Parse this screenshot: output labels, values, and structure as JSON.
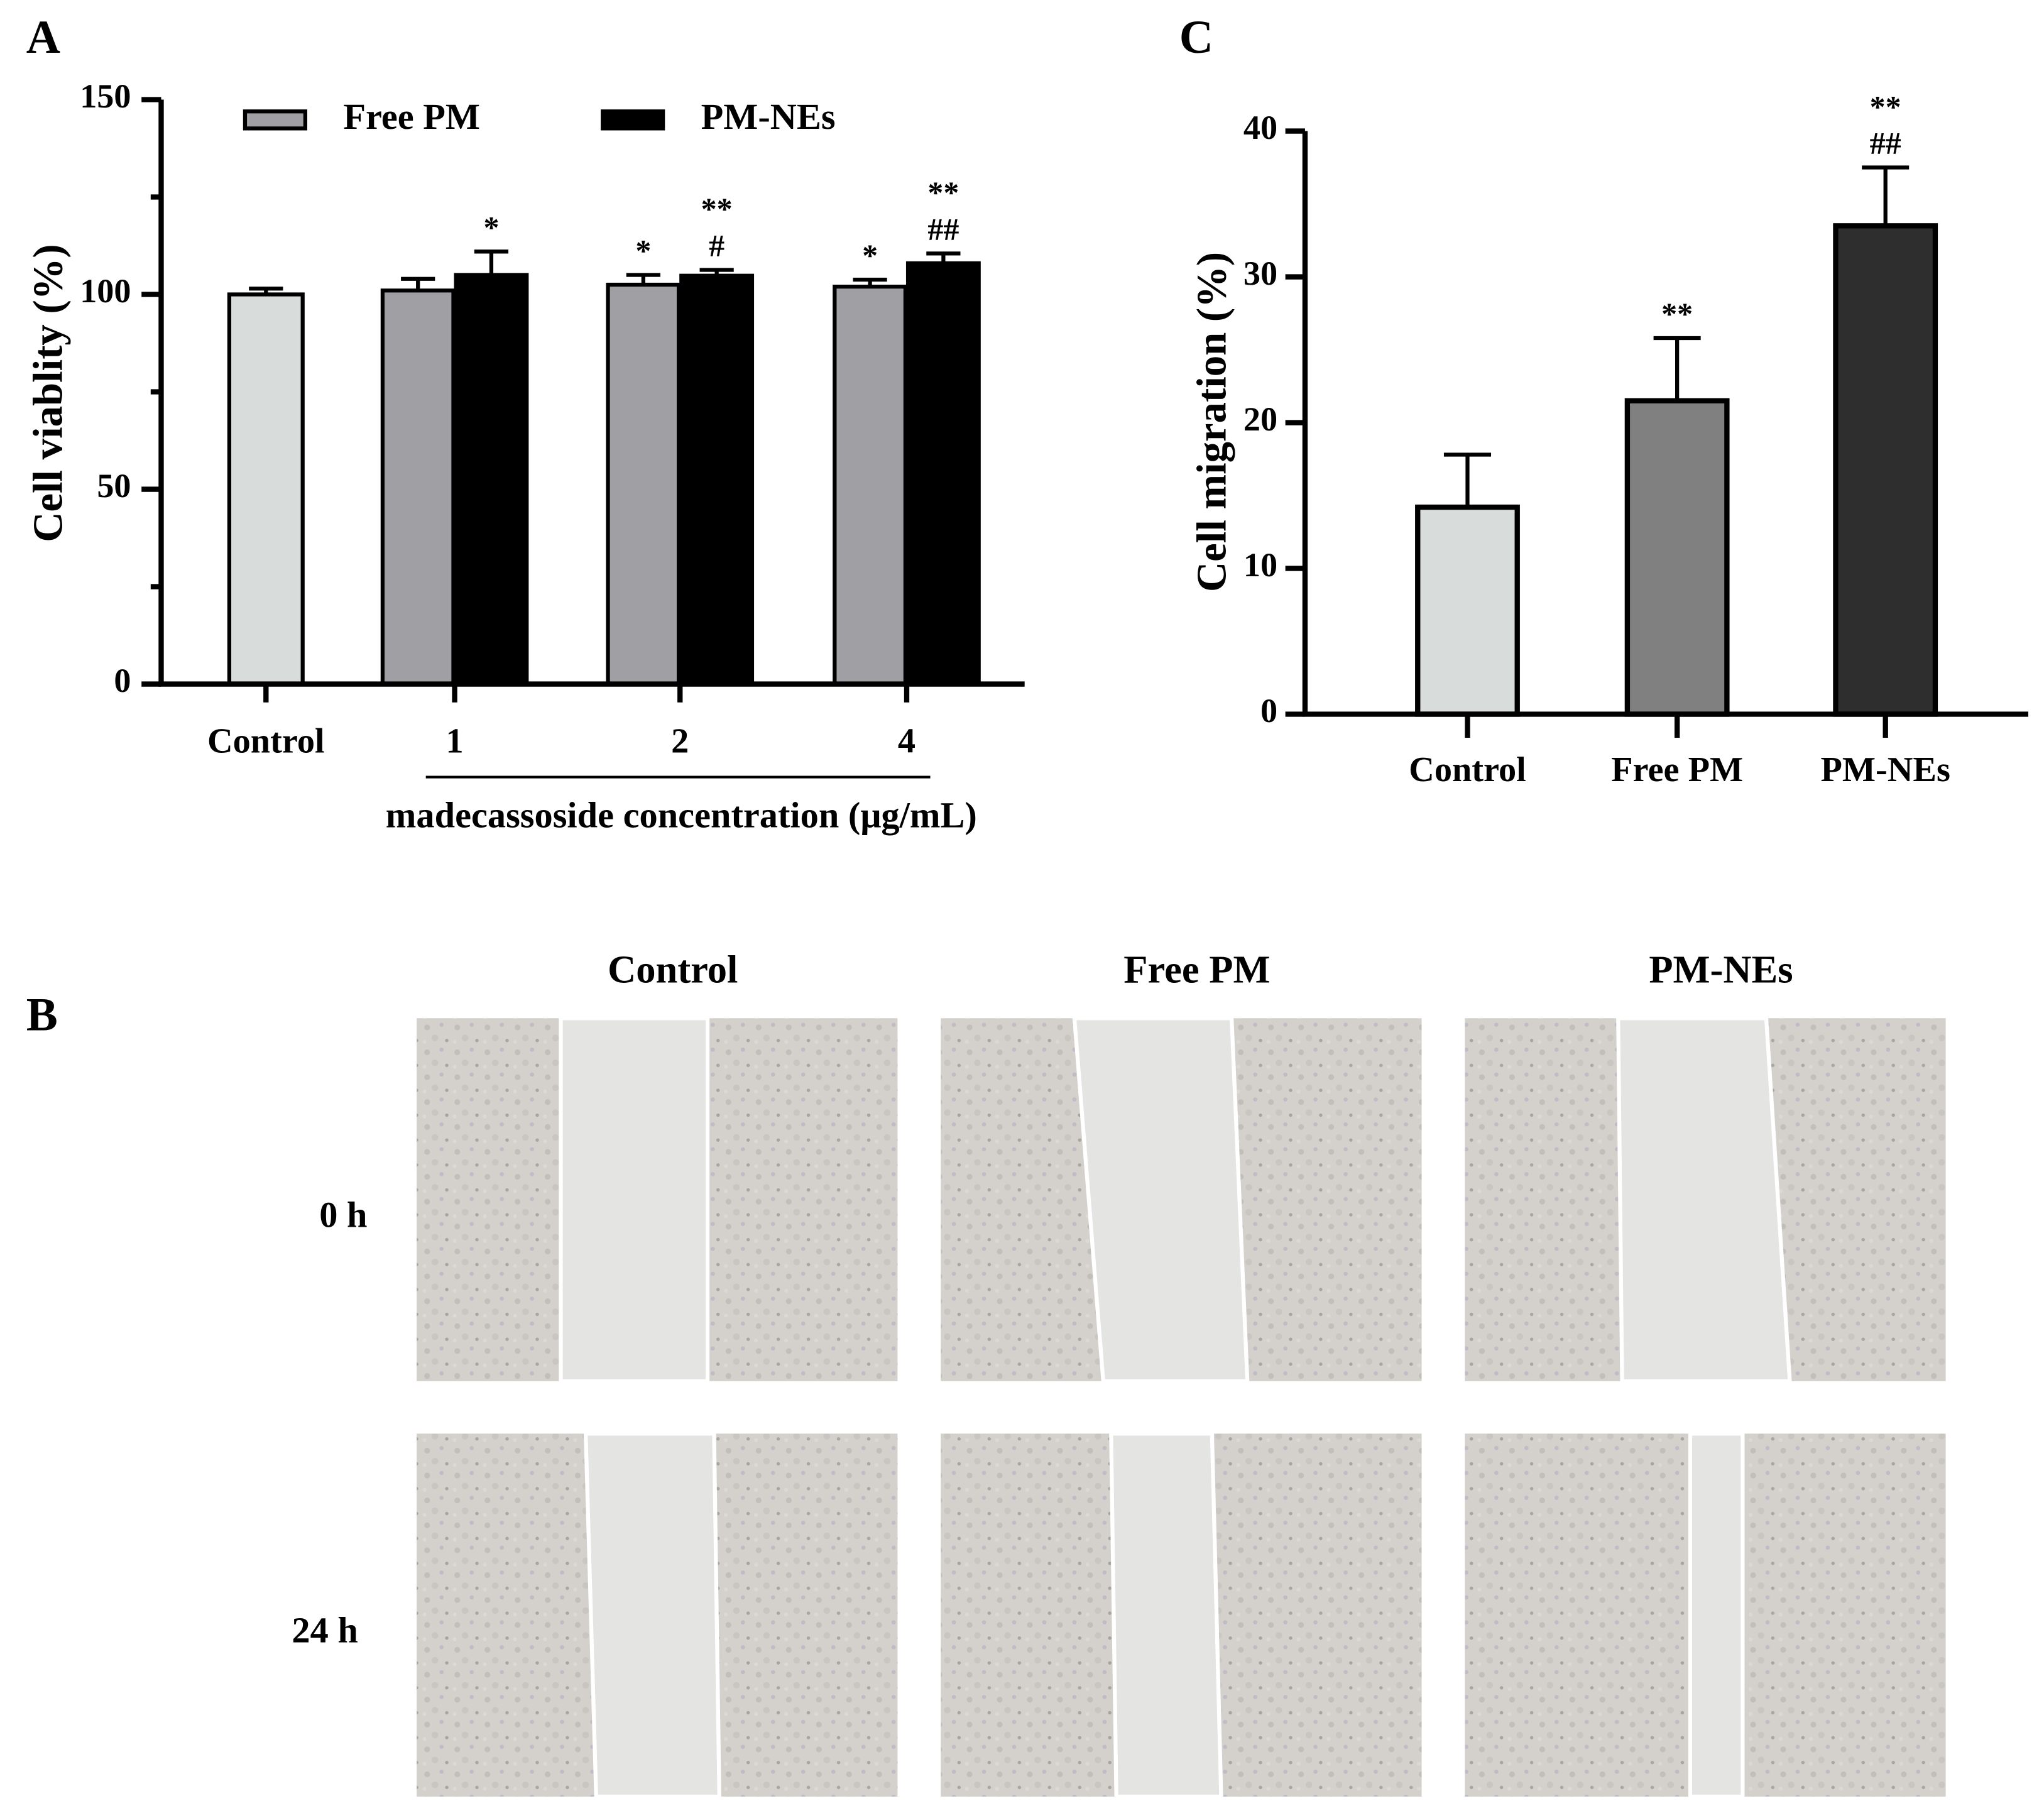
{
  "chart_data": [
    {
      "type": "bar",
      "panel": "A",
      "y_label": "Cell viablity (%)",
      "x_label": "madecassoside concentration (μg/mL)",
      "categories": [
        "Control",
        "1",
        "2",
        "4"
      ],
      "control": {
        "value": 100,
        "error": 1.5,
        "color": "#d8dcdb"
      },
      "series": [
        {
          "name": "Free PM",
          "color": "#a09fa4",
          "values": [
            null,
            101,
            102.5,
            102
          ],
          "errors": [
            null,
            3,
            2.5,
            1.8
          ],
          "annotations": [
            null,
            null,
            [
              "*"
            ],
            [
              "*"
            ]
          ]
        },
        {
          "name": "PM-NEs",
          "color": "#000000",
          "values": [
            null,
            105,
            104.8,
            108
          ],
          "errors": [
            null,
            6,
            1.5,
            2.5
          ],
          "annotations": [
            null,
            [
              "*"
            ],
            [
              "**",
              "#"
            ],
            [
              "**",
              "##"
            ]
          ]
        }
      ],
      "ylim": [
        0,
        150
      ],
      "yticks": [
        0,
        50,
        100,
        150
      ],
      "minor_yticks": [
        25,
        75,
        125
      ]
    },
    {
      "type": "bar",
      "panel": "C",
      "y_label": "Cell migration (%)",
      "categories": [
        "Control",
        "Free PM",
        "PM-NEs"
      ],
      "values": [
        14.2,
        21.5,
        33.5
      ],
      "errors": [
        3.6,
        4.3,
        4.0
      ],
      "colors": [
        "#d8dcdb",
        "#808080",
        "#2e2e2e"
      ],
      "annotations": [
        null,
        [
          "**"
        ],
        [
          "**",
          "##"
        ]
      ],
      "ylim": [
        0,
        40
      ],
      "yticks": [
        0,
        10,
        20,
        30,
        40
      ]
    }
  ],
  "micrographs": {
    "panel": "B",
    "columns": [
      "Control",
      "Free PM",
      "PM-NEs"
    ],
    "rows": [
      "0 h",
      "24 h"
    ]
  }
}
